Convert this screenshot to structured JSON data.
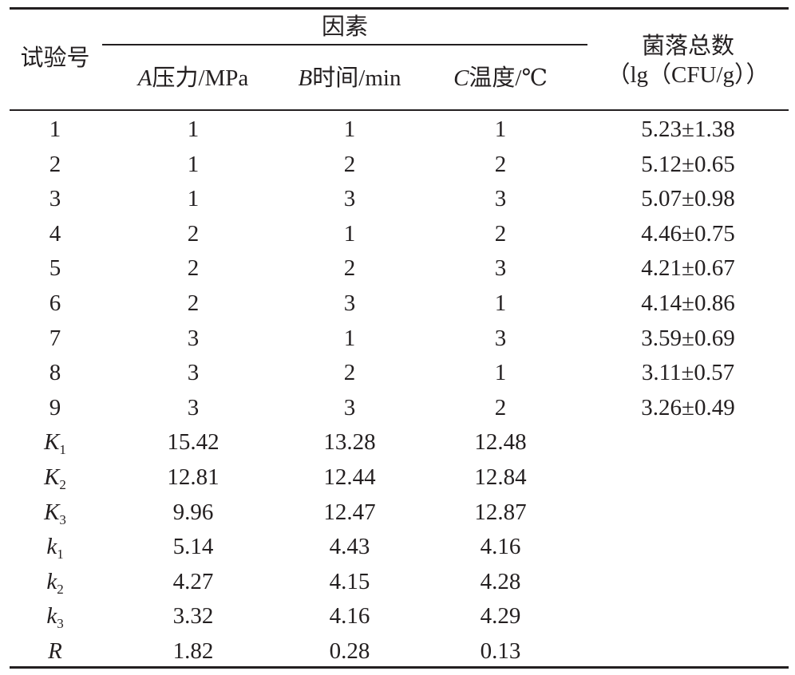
{
  "table": {
    "header": {
      "trial_no": "试验号",
      "factors_group": "因素",
      "factor_a": {
        "letter": "A",
        "label": "压力/MPa"
      },
      "factor_b": {
        "letter": "B",
        "label": "时间/min"
      },
      "factor_c": {
        "letter": "C",
        "label": "温度/℃"
      },
      "result_line1": "菌落总数",
      "result_line2": "（lg（CFU/g））"
    },
    "rows": [
      {
        "no": "1",
        "a": "1",
        "b": "1",
        "c": "1",
        "result": "5.23±1.38"
      },
      {
        "no": "2",
        "a": "1",
        "b": "2",
        "c": "2",
        "result": "5.12±0.65"
      },
      {
        "no": "3",
        "a": "1",
        "b": "3",
        "c": "3",
        "result": "5.07±0.98"
      },
      {
        "no": "4",
        "a": "2",
        "b": "1",
        "c": "2",
        "result": "4.46±0.75"
      },
      {
        "no": "5",
        "a": "2",
        "b": "2",
        "c": "3",
        "result": "4.21±0.67"
      },
      {
        "no": "6",
        "a": "2",
        "b": "3",
        "c": "1",
        "result": "4.14±0.86"
      },
      {
        "no": "7",
        "a": "3",
        "b": "1",
        "c": "3",
        "result": "3.59±0.69"
      },
      {
        "no": "8",
        "a": "3",
        "b": "2",
        "c": "1",
        "result": "3.11±0.57"
      },
      {
        "no": "9",
        "a": "3",
        "b": "3",
        "c": "2",
        "result": "3.26±0.49"
      }
    ],
    "summary": [
      {
        "sym": "K",
        "sub": "1",
        "a": "15.42",
        "b": "13.28",
        "c": "12.48"
      },
      {
        "sym": "K",
        "sub": "2",
        "a": "12.81",
        "b": "12.44",
        "c": "12.84"
      },
      {
        "sym": "K",
        "sub": "3",
        "a": "9.96",
        "b": "12.47",
        "c": "12.87"
      },
      {
        "sym": "k",
        "sub": "1",
        "a": "5.14",
        "b": "4.43",
        "c": "4.16"
      },
      {
        "sym": "k",
        "sub": "2",
        "a": "4.27",
        "b": "4.15",
        "c": "4.28"
      },
      {
        "sym": "k",
        "sub": "3",
        "a": "3.32",
        "b": "4.16",
        "c": "4.29"
      },
      {
        "sym": "R",
        "sub": "",
        "a": "1.82",
        "b": "0.28",
        "c": "0.13"
      }
    ]
  }
}
